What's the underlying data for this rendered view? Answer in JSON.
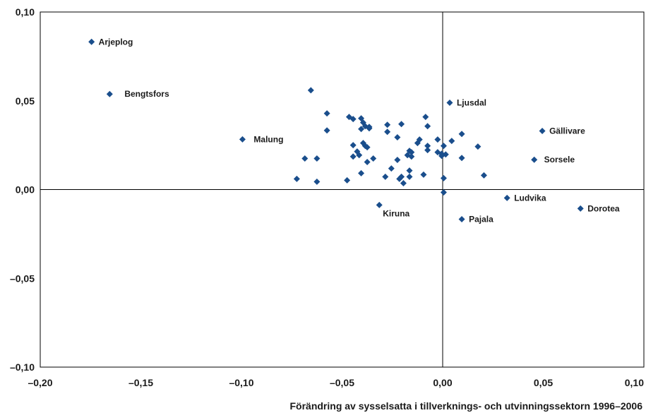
{
  "chart_data": {
    "type": "scatter",
    "title": "",
    "xlabel": "Förändring av sysselsatta i tillverknings- och utvinningssektorn 1996–2006",
    "ylabel": "",
    "xlim": [
      -0.2,
      0.1
    ],
    "ylim": [
      -0.1,
      0.1
    ],
    "x_ticks": [
      {
        "value": -0.2,
        "label": "–0,20"
      },
      {
        "value": -0.15,
        "label": "–0,15"
      },
      {
        "value": -0.1,
        "label": "–0,10"
      },
      {
        "value": -0.05,
        "label": "–0,05"
      },
      {
        "value": 0.0,
        "label": "0,00"
      },
      {
        "value": 0.05,
        "label": "0,05"
      },
      {
        "value": 0.1,
        "label": "0,10"
      }
    ],
    "y_ticks": [
      {
        "value": 0.1,
        "label": "0,10"
      },
      {
        "value": 0.05,
        "label": "0,05"
      },
      {
        "value": 0.0,
        "label": "0,00"
      },
      {
        "value": -0.05,
        "label": "–0,05"
      },
      {
        "value": -0.1,
        "label": "–0,10"
      }
    ],
    "grid": false,
    "marker_color": "#1a4e8c",
    "labeled_points": [
      {
        "label": "Arjeplog",
        "x": -0.1745,
        "y": 0.0832
      },
      {
        "label": "Bengtsfors",
        "x": -0.1655,
        "y": 0.0538
      },
      {
        "label": "Malung",
        "x": -0.0995,
        "y": 0.0283
      },
      {
        "label": "Ljusdal",
        "x": 0.0035,
        "y": 0.0489
      },
      {
        "label": "Gällivare",
        "x": 0.0495,
        "y": 0.033
      },
      {
        "label": "Sorsele",
        "x": 0.0455,
        "y": 0.0168
      },
      {
        "label": "Kiruna",
        "x": -0.0315,
        "y": -0.0087
      },
      {
        "label": "Ludvika",
        "x": 0.032,
        "y": -0.0047
      },
      {
        "label": "Dorotea",
        "x": 0.0685,
        "y": -0.0107
      },
      {
        "label": "Pajala",
        "x": 0.0095,
        "y": -0.0167
      }
    ],
    "points": [
      [
        -0.0655,
        0.0559
      ],
      [
        -0.0575,
        0.0429
      ],
      [
        -0.0575,
        0.0333
      ],
      [
        -0.0685,
        0.0175
      ],
      [
        -0.0625,
        0.0175
      ],
      [
        -0.0725,
        0.006
      ],
      [
        -0.0625,
        0.0044
      ],
      [
        -0.0475,
        0.0052
      ],
      [
        -0.0465,
        0.0409
      ],
      [
        -0.0445,
        0.0397
      ],
      [
        -0.0405,
        0.0401
      ],
      [
        -0.0395,
        0.0377
      ],
      [
        -0.0385,
        0.0357
      ],
      [
        -0.0405,
        0.0341
      ],
      [
        -0.0365,
        0.0353
      ],
      [
        -0.0365,
        0.0345
      ],
      [
        -0.0445,
        0.025
      ],
      [
        -0.0395,
        0.0262
      ],
      [
        -0.0385,
        0.0246
      ],
      [
        -0.0375,
        0.0238
      ],
      [
        -0.0425,
        0.0214
      ],
      [
        -0.0415,
        0.0194
      ],
      [
        -0.0445,
        0.0186
      ],
      [
        -0.0375,
        0.0155
      ],
      [
        -0.0345,
        0.0175
      ],
      [
        -0.0405,
        0.0092
      ],
      [
        -0.0275,
        0.0365
      ],
      [
        -0.0275,
        0.0325
      ],
      [
        -0.0225,
        0.0294
      ],
      [
        -0.0205,
        0.0369
      ],
      [
        -0.0255,
        0.0119
      ],
      [
        -0.0285,
        0.0072
      ],
      [
        -0.0215,
        0.006
      ],
      [
        -0.0205,
        0.0072
      ],
      [
        -0.0195,
        0.0036
      ],
      [
        -0.0175,
        0.0194
      ],
      [
        -0.0165,
        0.0218
      ],
      [
        -0.0155,
        0.021
      ],
      [
        -0.0155,
        0.0186
      ],
      [
        -0.0165,
        0.0107
      ],
      [
        -0.0165,
        0.0072
      ],
      [
        -0.0225,
        0.0167
      ],
      [
        -0.0125,
        0.0262
      ],
      [
        -0.0115,
        0.0282
      ],
      [
        -0.0085,
        0.0409
      ],
      [
        -0.0075,
        0.0357
      ],
      [
        -0.0075,
        0.0246
      ],
      [
        -0.0075,
        0.0222
      ],
      [
        -0.0095,
        0.0084
      ],
      [
        -0.0025,
        0.0282
      ],
      [
        -0.0025,
        0.021
      ],
      [
        -0.0005,
        0.0202
      ],
      [
        -0.0005,
        0.019
      ],
      [
        0.0005,
        0.0246
      ],
      [
        0.0015,
        0.0198
      ],
      [
        0.0005,
        0.0064
      ],
      [
        0.0005,
        -0.0016
      ],
      [
        0.0045,
        0.0274
      ],
      [
        0.0095,
        0.0313
      ],
      [
        0.0095,
        0.0178
      ],
      [
        0.0175,
        0.0242
      ],
      [
        0.0205,
        0.008
      ]
    ]
  }
}
